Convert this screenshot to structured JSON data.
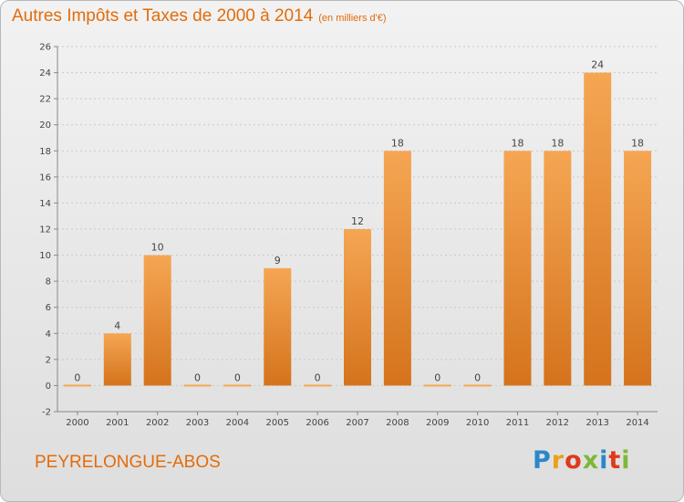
{
  "title": "Autres Impôts et Taxes de 2000 à 2014",
  "subtitle": "(en milliers d'€)",
  "commune": "PEYRELONGUE-ABOS",
  "logo": {
    "text": "Proxiti",
    "letter_colors": [
      "#2b87c8",
      "#e8a21a",
      "#e0391c",
      "#7db83a",
      "#2b87c8",
      "#e0391c",
      "#7db83a"
    ]
  },
  "colors": {
    "title": "#e36c0a",
    "bar_top": "#f5a653",
    "bar_bottom": "#d5731c",
    "grid": "#c9c9c9",
    "axis": "#888888"
  },
  "chart_data": {
    "type": "bar",
    "categories": [
      "2000",
      "2001",
      "2002",
      "2003",
      "2004",
      "2005",
      "2006",
      "2007",
      "2008",
      "2009",
      "2010",
      "2011",
      "2012",
      "2013",
      "2014"
    ],
    "values": [
      0,
      4,
      10,
      0,
      0,
      9,
      0,
      12,
      18,
      0,
      0,
      18,
      18,
      24,
      18
    ],
    "value_labels": [
      "0",
      "4",
      "10",
      "0",
      "0",
      "9",
      "0",
      "12",
      "18",
      "0",
      "0",
      "18",
      "18",
      "24",
      "18"
    ],
    "yticks": [
      -2,
      0,
      2,
      4,
      6,
      8,
      10,
      12,
      14,
      16,
      18,
      20,
      22,
      24,
      26
    ],
    "ylim": [
      -2,
      26
    ],
    "grid": true
  }
}
